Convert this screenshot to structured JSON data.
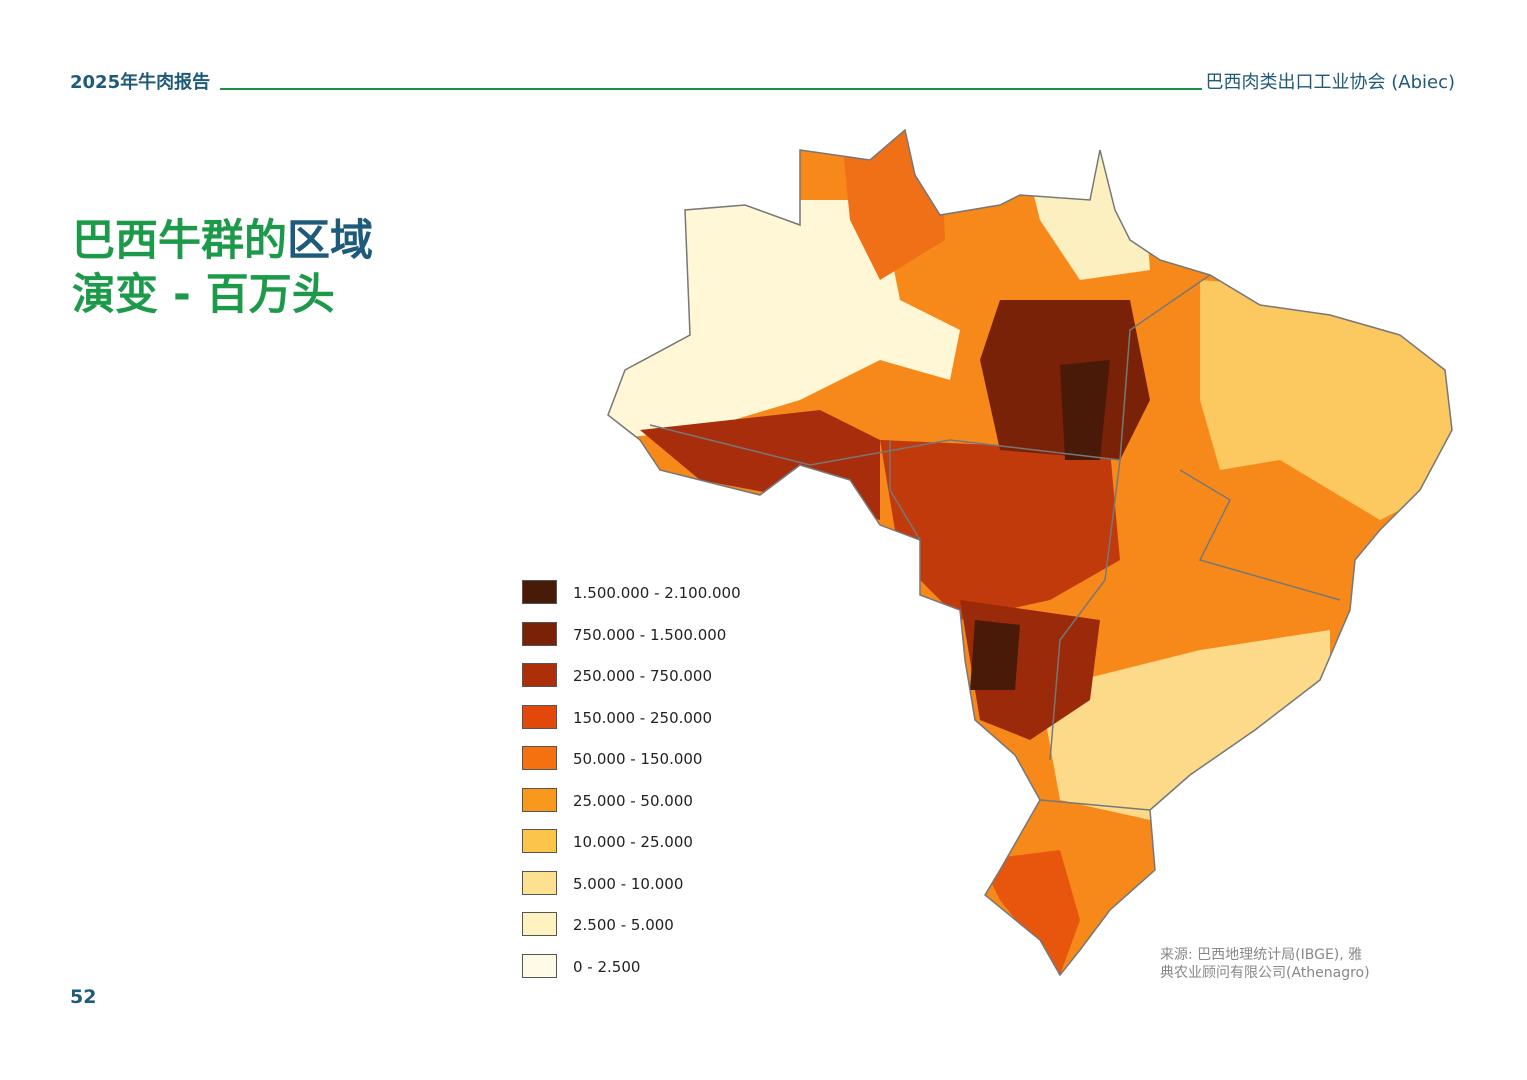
{
  "header": {
    "left": "2025年牛肉报告",
    "right": "巴西肉类出口工业协会 (Abiec)"
  },
  "title": {
    "line1_green": "巴西牛群的",
    "line1_blue": "区域",
    "line2": "演变 - 百万头"
  },
  "legend": {
    "items": [
      {
        "label": "1.500.000 - 2.100.000",
        "color": "#4a1a08"
      },
      {
        "label": "750.000 - 1.500.000",
        "color": "#7a2208"
      },
      {
        "label": "250.000 - 750.000",
        "color": "#ad2f0a"
      },
      {
        "label": "150.000 - 250.000",
        "color": "#e2480c"
      },
      {
        "label": "50.000  - 150.000",
        "color": "#f5700f"
      },
      {
        "label": "25.000 - 50.000",
        "color": "#f9991c"
      },
      {
        "label": "10.000 - 25.000",
        "color": "#fbc44a"
      },
      {
        "label": "5.000 - 10.000",
        "color": "#fde090"
      },
      {
        "label": "2.500 - 5.000",
        "color": "#fef3c0"
      },
      {
        "label": "0 - 2.500",
        "color": "#fffbe6"
      }
    ]
  },
  "source": {
    "line1": "来源: 巴西地理统计局(IBGE), 雅",
    "line2": "典农业顾问有限公司(Athenagro)"
  },
  "page_number": "52"
}
